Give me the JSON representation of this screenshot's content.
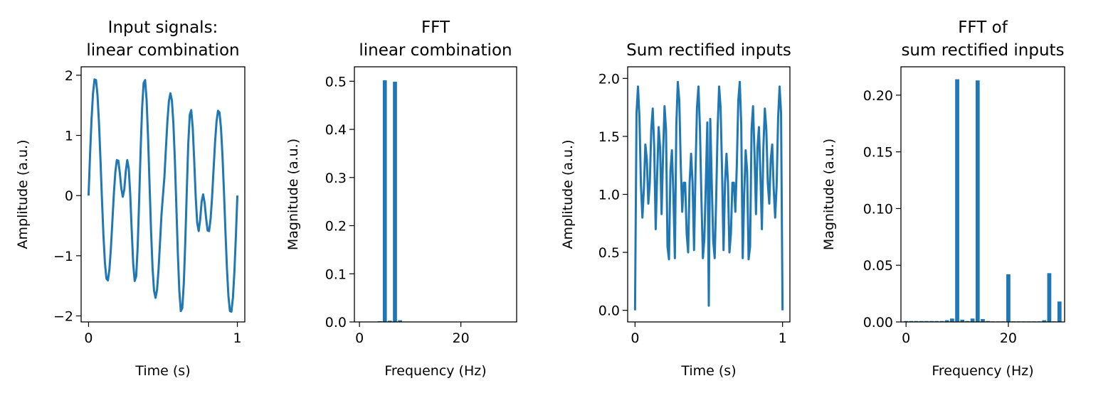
{
  "colors": {
    "series": "#1f77b4",
    "axes": "#000000",
    "background": "#ffffff"
  },
  "chart_data": [
    {
      "type": "line",
      "title_lines": [
        "Input signals:",
        "linear combination"
      ],
      "xlabel": "Time (s)",
      "ylabel": "Amplitude (a.u.)",
      "xlim": [
        -0.05,
        1.05
      ],
      "ylim": [
        -2.1,
        2.14
      ],
      "xticks": [
        0,
        1
      ],
      "xtick_labels": [
        "0",
        "1"
      ],
      "yticks": [
        -2,
        -1,
        0,
        1,
        2
      ],
      "ytick_labels": [
        "−2",
        "−1",
        "0",
        "1",
        "2"
      ],
      "series": [
        {
          "x": [
            0,
            0.01,
            0.02,
            0.03,
            0.04,
            0.05,
            0.06,
            0.07,
            0.08,
            0.09,
            0.1,
            0.11,
            0.12,
            0.13,
            0.14,
            0.15,
            0.16,
            0.17,
            0.18,
            0.19,
            0.2,
            0.21,
            0.22,
            0.23,
            0.24,
            0.25,
            0.26,
            0.27,
            0.28,
            0.29,
            0.3,
            0.31,
            0.32,
            0.33,
            0.34,
            0.35,
            0.36,
            0.37,
            0.38,
            0.39,
            0.4,
            0.41,
            0.42,
            0.43,
            0.44,
            0.45,
            0.46,
            0.47,
            0.48,
            0.49,
            0.5,
            0.51,
            0.52,
            0.53,
            0.54,
            0.55,
            0.56,
            0.57,
            0.58,
            0.59,
            0.6,
            0.61,
            0.62,
            0.63,
            0.64,
            0.65,
            0.66,
            0.67,
            0.68,
            0.69,
            0.7,
            0.71,
            0.72,
            0.73,
            0.74,
            0.75,
            0.76,
            0.77,
            0.78,
            0.79,
            0.8,
            0.81,
            0.82,
            0.83,
            0.84,
            0.85,
            0.86,
            0.87,
            0.88,
            0.89,
            0.9,
            0.91,
            0.92,
            0.93,
            0.94,
            0.95,
            0.96,
            0.97,
            0.98,
            0.99,
            1.0
          ],
          "y": [
            0,
            0.68,
            1.27,
            1.7,
            1.93,
            1.92,
            1.67,
            1.21,
            0.6,
            -0.06,
            -0.66,
            -1.12,
            -1.38,
            -1.41,
            -1.23,
            -0.88,
            -0.43,
            0.03,
            0.39,
            0.59,
            0.58,
            0.38,
            0.12,
            -0.02,
            0.1,
            0.4,
            0.59,
            0.45,
            0.02,
            -0.58,
            -1.13,
            -1.42,
            -1.34,
            -0.86,
            -0.07,
            0.77,
            1.46,
            1.87,
            1.92,
            1.59,
            0.96,
            0.18,
            -0.59,
            -1.2,
            -1.58,
            -1.7,
            -1.57,
            -1.24,
            -0.79,
            -0.32,
            0.0,
            0.32,
            0.79,
            1.24,
            1.57,
            1.7,
            1.58,
            1.2,
            0.59,
            -0.18,
            -0.96,
            -1.59,
            -1.92,
            -1.87,
            -1.46,
            -0.77,
            0.07,
            0.86,
            1.34,
            1.42,
            1.13,
            0.58,
            -0.02,
            -0.45,
            -0.59,
            -0.4,
            -0.1,
            0.02,
            -0.12,
            -0.38,
            -0.58,
            -0.59,
            -0.39,
            -0.03,
            0.43,
            0.88,
            1.23,
            1.41,
            1.38,
            1.12,
            0.66,
            0.06,
            -0.6,
            -1.21,
            -1.67,
            -1.92,
            -1.93,
            -1.7,
            -1.27,
            -0.68,
            0
          ]
        }
      ]
    },
    {
      "type": "bar",
      "title_lines": [
        "FFT",
        "linear combination"
      ],
      "xlabel": "Frequency (Hz)",
      "ylabel": "Magnitude (a.u.)",
      "xlim": [
        -1,
        31
      ],
      "ylim": [
        0,
        0.53
      ],
      "bar_width": 0.8,
      "xticks": [
        0,
        20
      ],
      "xtick_labels": [
        "0",
        "20"
      ],
      "yticks": [
        0.0,
        0.1,
        0.2,
        0.3,
        0.4,
        0.5
      ],
      "ytick_labels": [
        "0.0",
        "0.1",
        "0.2",
        "0.3",
        "0.4",
        "0.5"
      ],
      "x": [
        0,
        1,
        2,
        3,
        4,
        5,
        6,
        7,
        8,
        9,
        10,
        11,
        12,
        13,
        14,
        15,
        16,
        17,
        18,
        19,
        20,
        21,
        22,
        23,
        24,
        25,
        26,
        27,
        28,
        29,
        30
      ],
      "values": [
        0,
        0,
        0,
        0.0005,
        0.0015,
        0.502,
        0.0025,
        0.499,
        0.0035,
        0.0008,
        0,
        0,
        0,
        0,
        0,
        0,
        0,
        0,
        0,
        0,
        0,
        0,
        0,
        0,
        0,
        0,
        0,
        0,
        0,
        0,
        0
      ]
    },
    {
      "type": "line",
      "title_lines": [
        "Sum rectified inputs"
      ],
      "xlabel": "Time (s)",
      "ylabel": "Amplitude (a.u.)",
      "xlim": [
        -0.05,
        1.05
      ],
      "ylim": [
        -0.1,
        2.1
      ],
      "xticks": [
        0,
        1
      ],
      "xtick_labels": [
        "0",
        "1"
      ],
      "yticks": [
        0.0,
        0.5,
        1.0,
        1.5,
        2.0
      ],
      "ytick_labels": [
        "0.0",
        "0.5",
        "1.0",
        "1.5",
        "2.0"
      ],
      "series": [
        {
          "x": [
            0,
            0.01,
            0.02,
            0.03,
            0.04,
            0.05,
            0.06,
            0.07,
            0.08,
            0.09,
            0.1,
            0.11,
            0.12,
            0.13,
            0.14,
            0.15,
            0.16,
            0.17,
            0.18,
            0.19,
            0.2,
            0.21,
            0.22,
            0.23,
            0.24,
            0.25,
            0.26,
            0.27,
            0.28,
            0.29,
            0.3,
            0.31,
            0.32,
            0.33,
            0.34,
            0.35,
            0.36,
            0.37,
            0.38,
            0.39,
            0.4,
            0.41,
            0.42,
            0.43,
            0.44,
            0.45,
            0.46,
            0.47,
            0.48,
            0.49,
            0.5,
            0.51,
            0.52,
            0.53,
            0.54,
            0.55,
            0.56,
            0.57,
            0.58,
            0.59,
            0.6,
            0.61,
            0.62,
            0.63,
            0.64,
            0.65,
            0.66,
            0.67,
            0.68,
            0.69,
            0.7,
            0.71,
            0.72,
            0.73,
            0.74,
            0.75,
            0.76,
            0.77,
            0.78,
            0.79,
            0.8,
            0.81,
            0.82,
            0.83,
            0.84,
            0.85,
            0.86,
            0.87,
            0.88,
            0.89,
            0.9,
            0.91,
            0.92,
            0.93,
            0.94,
            0.95,
            0.96,
            0.97,
            0.98,
            0.99,
            1.0
          ],
          "y": [
            0,
            1.7,
            1.93,
            1.66,
            1.08,
            0.8,
            1.05,
            1.43,
            1.3,
            0.92,
            1.1,
            1.56,
            1.74,
            1.4,
            0.7,
            1.17,
            1.58,
            1.4,
            0.83,
            1.35,
            1.76,
            1.56,
            0.55,
            0.44,
            1.2,
            1.38,
            1.0,
            0.45,
            1.6,
            1.97,
            1.81,
            1.25,
            0.85,
            1.1,
            1.1,
            0.66,
            0.5,
            1.1,
            1.35,
            1.1,
            0.52,
            1.2,
            1.75,
            1.93,
            1.57,
            0.96,
            0.45,
            0.62,
            1.1,
            1.62,
            0.04,
            1.65,
            1.1,
            0.6,
            0.45,
            0.96,
            1.57,
            1.93,
            1.75,
            1.2,
            0.52,
            1.1,
            1.35,
            1.1,
            0.5,
            0.66,
            1.1,
            1.1,
            0.85,
            1.25,
            1.81,
            1.97,
            1.6,
            0.45,
            1.0,
            1.38,
            1.2,
            0.44,
            0.55,
            1.56,
            1.76,
            1.35,
            0.83,
            1.4,
            1.58,
            1.17,
            0.7,
            1.4,
            1.74,
            1.56,
            1.1,
            0.92,
            1.3,
            1.43,
            1.05,
            0.8,
            1.08,
            1.66,
            1.93,
            1.7,
            0
          ]
        }
      ]
    },
    {
      "type": "bar",
      "title_lines": [
        "FFT of",
        "sum rectified inputs"
      ],
      "xlabel": "Frequency (Hz)",
      "ylabel": "Magnitude (a.u.)",
      "xlim": [
        -1,
        31
      ],
      "ylim": [
        0,
        0.225
      ],
      "bar_width": 0.8,
      "xticks": [
        0,
        20
      ],
      "xtick_labels": [
        "0",
        "20"
      ],
      "yticks": [
        0.0,
        0.05,
        0.1,
        0.15,
        0.2
      ],
      "ytick_labels": [
        "0.00",
        "0.05",
        "0.10",
        "0.15",
        "0.20"
      ],
      "x": [
        0,
        1,
        2,
        3,
        4,
        5,
        6,
        7,
        8,
        9,
        10,
        11,
        12,
        13,
        14,
        15,
        16,
        17,
        18,
        19,
        20,
        21,
        22,
        23,
        24,
        25,
        26,
        27,
        28,
        29,
        30
      ],
      "values": [
        0.0008,
        0.0008,
        0.0008,
        0.0008,
        0.0008,
        0.0008,
        0.0008,
        0.0008,
        0.0015,
        0.003,
        0.214,
        0.002,
        0.0008,
        0.003,
        0.213,
        0.0025,
        0.0008,
        0.0005,
        0.0005,
        0.0005,
        0.042,
        0.0005,
        0.0005,
        0.0005,
        0.0005,
        0.0005,
        0.0005,
        0.0015,
        0.043,
        0.0005,
        0.018
      ]
    }
  ]
}
